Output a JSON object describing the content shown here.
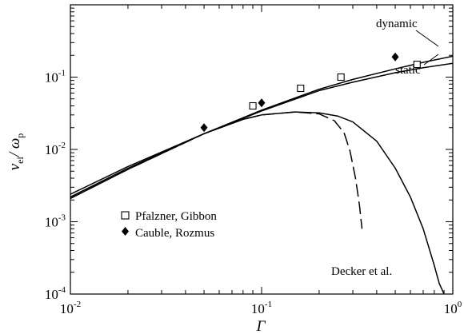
{
  "chart_data": {
    "type": "line",
    "xlabel": "Γ",
    "ylabel": {
      "num": "ν",
      "num_sub": "ei",
      "sep": "/ ",
      "den": "ω",
      "den_sub": "p"
    },
    "x_scale": "log",
    "y_scale": "log",
    "xlim": [
      0.01,
      1
    ],
    "ylim": [
      0.0001,
      1
    ],
    "x_ticks": [
      {
        "value": 0.01,
        "base": "10",
        "exp": "-2"
      },
      {
        "value": 0.1,
        "base": "10",
        "exp": "-1"
      },
      {
        "value": 1,
        "base": "10",
        "exp": "0"
      }
    ],
    "y_ticks": [
      {
        "value": 0.0001,
        "base": "10",
        "exp": "-4"
      },
      {
        "value": 0.001,
        "base": "10",
        "exp": "-3"
      },
      {
        "value": 0.01,
        "base": "10",
        "exp": "-2"
      },
      {
        "value": 0.1,
        "base": "10",
        "exp": "-1"
      }
    ],
    "grid": false,
    "series": [
      {
        "name": "dynamic",
        "style": "solid",
        "x": [
          0.01,
          0.02,
          0.05,
          0.1,
          0.2,
          0.3,
          0.5,
          0.7,
          1.0
        ],
        "y": [
          0.0024,
          0.0058,
          0.0165,
          0.035,
          0.068,
          0.093,
          0.13,
          0.16,
          0.195
        ]
      },
      {
        "name": "static",
        "style": "solid",
        "x": [
          0.01,
          0.02,
          0.05,
          0.1,
          0.2,
          0.3,
          0.5,
          0.7,
          1.0
        ],
        "y": [
          0.0022,
          0.0055,
          0.0165,
          0.034,
          0.065,
          0.085,
          0.115,
          0.135,
          0.155
        ]
      },
      {
        "name": "Decker et al.",
        "style": "solid",
        "x": [
          0.01,
          0.02,
          0.05,
          0.08,
          0.1,
          0.15,
          0.2,
          0.25,
          0.3,
          0.4,
          0.5,
          0.6,
          0.7,
          0.8,
          0.85,
          0.9
        ],
        "y": [
          0.0021,
          0.0053,
          0.0165,
          0.026,
          0.03,
          0.033,
          0.032,
          0.029,
          0.024,
          0.013,
          0.0055,
          0.0022,
          0.0008,
          0.00025,
          0.00014,
          0.0001
        ]
      },
      {
        "name": "",
        "style": "dashed",
        "x": [
          0.01,
          0.02,
          0.05,
          0.08,
          0.1,
          0.15,
          0.2,
          0.24,
          0.27,
          0.29,
          0.31,
          0.325,
          0.335
        ],
        "y": [
          0.0021,
          0.0053,
          0.0165,
          0.026,
          0.03,
          0.033,
          0.031,
          0.025,
          0.017,
          0.0095,
          0.004,
          0.0017,
          0.0008
        ]
      }
    ],
    "markers": [
      {
        "name": "Pfalzner, Gibbon",
        "symbol": "open-square",
        "x": [
          0.09,
          0.16,
          0.26,
          0.65
        ],
        "y": [
          0.04,
          0.07,
          0.1,
          0.15
        ]
      },
      {
        "name": "Cauble, Rozmus",
        "symbol": "filled-diamond",
        "x": [
          0.05,
          0.1,
          0.5
        ],
        "y": [
          0.02,
          0.044,
          0.19
        ]
      }
    ],
    "annotations": [
      {
        "text": "dynamic"
      },
      {
        "text": "static"
      },
      {
        "text": "Decker et al."
      }
    ],
    "legend": {
      "placement": "lower-left",
      "entries": [
        {
          "symbol": "open-square",
          "label": "Pfalzner, Gibbon"
        },
        {
          "symbol": "filled-diamond",
          "label": "Cauble, Rozmus"
        }
      ]
    }
  }
}
